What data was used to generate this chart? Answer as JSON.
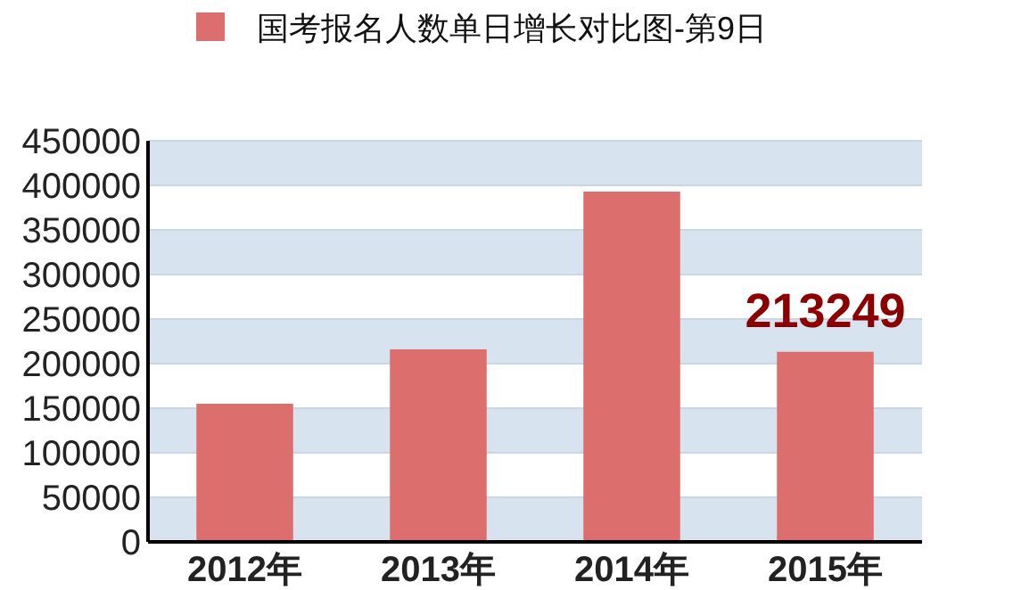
{
  "chart_data": {
    "type": "bar",
    "categories": [
      "2012年",
      "2013年",
      "2014年",
      "2015年"
    ],
    "series": [
      {
        "name": "国考报名人数单日增长对比图-第9日",
        "color": "#dc6e6e",
        "values": [
          155000,
          216000,
          393000,
          213249
        ],
        "value_labels": [
          null,
          null,
          null,
          "213249"
        ]
      }
    ],
    "ylim": [
      0,
      450000
    ],
    "yticks": [
      0,
      50000,
      100000,
      150000,
      200000,
      250000,
      300000,
      350000,
      400000,
      450000
    ],
    "grid": "y",
    "legend": "top"
  }
}
